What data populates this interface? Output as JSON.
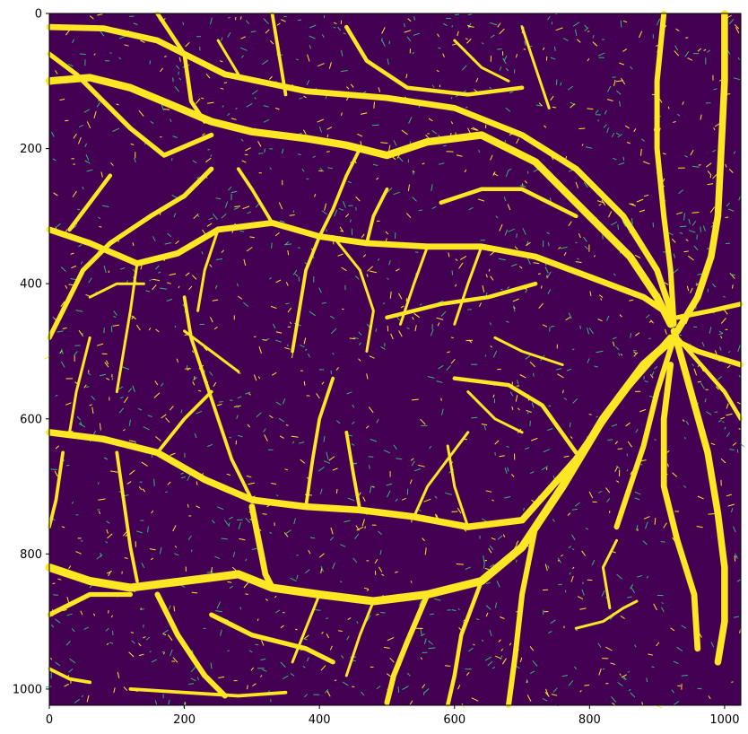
{
  "image": {
    "description_colormap": "viridis-binary",
    "colors": {
      "background": "#440154",
      "vessel": "#fde725",
      "noise": "#35b779",
      "frame": "#000000"
    }
  },
  "axes": {
    "x_ticks": [
      {
        "value": 0,
        "label": "0"
      },
      {
        "value": 200,
        "label": "200"
      },
      {
        "value": 400,
        "label": "400"
      },
      {
        "value": 600,
        "label": "600"
      },
      {
        "value": 800,
        "label": "800"
      },
      {
        "value": 1000,
        "label": "1000"
      }
    ],
    "y_ticks": [
      {
        "value": 0,
        "label": "0"
      },
      {
        "value": 200,
        "label": "200"
      },
      {
        "value": 400,
        "label": "400"
      },
      {
        "value": 600,
        "label": "600"
      },
      {
        "value": 800,
        "label": "800"
      },
      {
        "value": 1000,
        "label": "1000"
      }
    ],
    "xlim": [
      0,
      1024
    ],
    "ylim": [
      1024,
      0
    ]
  }
}
